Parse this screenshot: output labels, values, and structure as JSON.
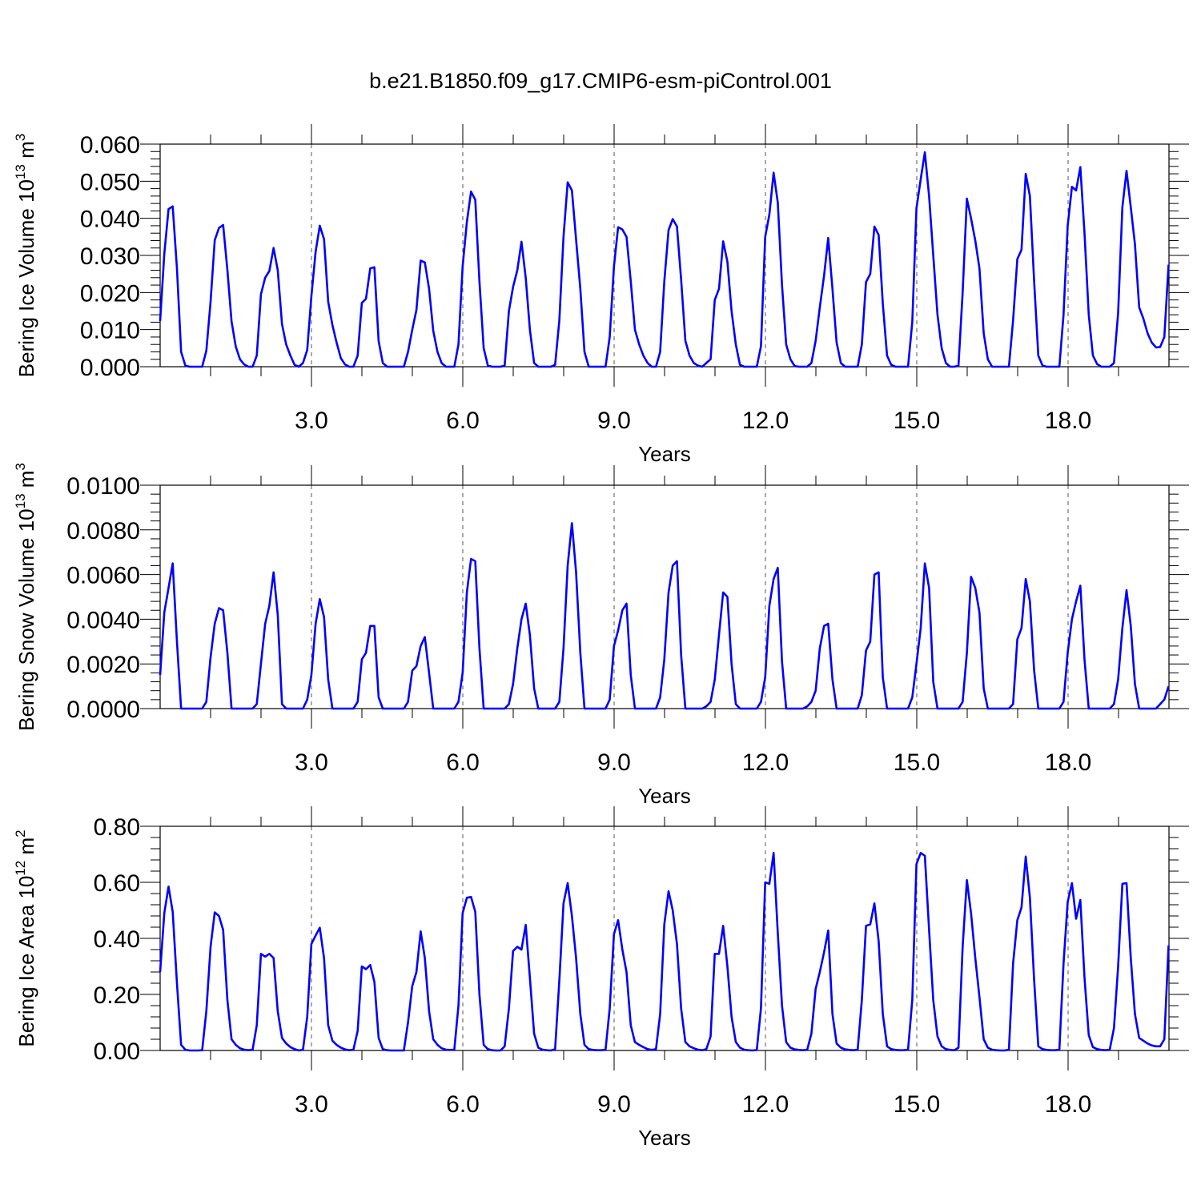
{
  "title": "b.e21.B1850.f09_g17.CMIP6-esm-piControl.001",
  "line_color": "#0000ff",
  "chart_data": [
    {
      "type": "line",
      "ylabel": "Bering Ice Volume 10",
      "ylabel_exp": "13",
      "ylabel_unit": "m",
      "ylabel_unit_exp": "3",
      "xlabel": "Years",
      "xlim": [
        0,
        20
      ],
      "xticks": [
        3,
        6,
        9,
        12,
        15,
        18
      ],
      "xtick_labels": [
        "3.0",
        "6.0",
        "9.0",
        "12.0",
        "15.0",
        "18.0"
      ],
      "ylim": [
        0,
        0.06
      ],
      "yticks": [
        0,
        0.01,
        0.02,
        0.03,
        0.04,
        0.05,
        0.06
      ],
      "ytick_labels": [
        "0.000",
        "0.010",
        "0.020",
        "0.030",
        "0.040",
        "0.050",
        "0.060"
      ],
      "grid": "dashed vertical at x ticks",
      "series": [
        {
          "x_start": 0.0,
          "x_step": 0.0833,
          "values": [
            0.0123,
            0.0304,
            0.0425,
            0.0432,
            0.0265,
            0.004,
            0.0003,
            0.0,
            0.0,
            0.0,
            0.0,
            0.0043,
            0.0175,
            0.0341,
            0.0374,
            0.0382,
            0.0261,
            0.0122,
            0.0054,
            0.002,
            0.0006,
            0.0,
            0.0,
            0.003,
            0.0195,
            0.024,
            0.0258,
            0.032,
            0.026,
            0.0115,
            0.006,
            0.003,
            0.0005,
            0.0,
            0.001,
            0.0045,
            0.019,
            0.031,
            0.038,
            0.0344,
            0.0175,
            0.0112,
            0.0065,
            0.0023,
            0.0006,
            0.0,
            0.0,
            0.003,
            0.0172,
            0.0183,
            0.0265,
            0.0268,
            0.0069,
            0.001,
            0.0,
            0.0,
            0.0,
            0.0,
            0.0,
            0.004,
            0.01,
            0.0153,
            0.0286,
            0.0281,
            0.021,
            0.0097,
            0.004,
            0.001,
            0.0,
            0.0,
            0.0,
            0.006,
            0.027,
            0.039,
            0.0472,
            0.045,
            0.023,
            0.005,
            0.0003,
            0.0,
            0.0,
            0.0,
            0.0003,
            0.015,
            0.0215,
            0.026,
            0.0337,
            0.024,
            0.01,
            0.001,
            0.0,
            0.0,
            0.0,
            0.0,
            0.0005,
            0.0125,
            0.035,
            0.0497,
            0.0475,
            0.0343,
            0.021,
            0.004,
            0.0,
            0.0,
            0.0,
            0.0,
            0.0,
            0.008,
            0.027,
            0.0376,
            0.037,
            0.035,
            0.023,
            0.01,
            0.006,
            0.003,
            0.001,
            0.0,
            0.0,
            0.004,
            0.023,
            0.0368,
            0.0398,
            0.0378,
            0.0235,
            0.007,
            0.003,
            0.001,
            0.0003,
            0.0,
            0.001,
            0.002,
            0.018,
            0.021,
            0.0338,
            0.0283,
            0.015,
            0.006,
            0.0005,
            0.0,
            0.0,
            0.0,
            0.0,
            0.0055,
            0.035,
            0.041,
            0.0523,
            0.0443,
            0.022,
            0.006,
            0.002,
            0.0002,
            0.0,
            0.0,
            0.0,
            0.001,
            0.007,
            0.016,
            0.0245,
            0.0347,
            0.021,
            0.0065,
            0.001,
            0.0,
            0.0,
            0.0,
            0.0,
            0.006,
            0.0228,
            0.025,
            0.0378,
            0.0355,
            0.017,
            0.003,
            0.0005,
            0.0,
            0.0,
            0.0,
            0.0,
            0.012,
            0.0427,
            0.0505,
            0.0578,
            0.046,
            0.03,
            0.014,
            0.005,
            0.001,
            0.0,
            0.0,
            0.0003,
            0.02,
            0.0453,
            0.04,
            0.034,
            0.0265,
            0.009,
            0.002,
            0.0,
            0.0,
            0.0,
            0.0,
            0.0,
            0.0125,
            0.029,
            0.0315,
            0.052,
            0.046,
            0.023,
            0.003,
            0.0003,
            0.0,
            0.0,
            0.0,
            0.0,
            0.014,
            0.038,
            0.0485,
            0.0475,
            0.0538,
            0.036,
            0.014,
            0.003,
            0.0007,
            0.0,
            0.0,
            0.0,
            0.001,
            0.0145,
            0.043,
            0.0528,
            0.043,
            0.033,
            0.016,
            0.013,
            0.009,
            0.0065,
            0.0052,
            0.0053,
            0.008,
            0.0275
          ]
        }
      ]
    },
    {
      "type": "line",
      "ylabel": "Bering Snow Volume 10",
      "ylabel_exp": "13",
      "ylabel_unit": "m",
      "ylabel_unit_exp": "3",
      "xlabel": "Years",
      "xlim": [
        0,
        20
      ],
      "xticks": [
        3,
        6,
        9,
        12,
        15,
        18
      ],
      "xtick_labels": [
        "3.0",
        "6.0",
        "9.0",
        "12.0",
        "15.0",
        "18.0"
      ],
      "ylim": [
        0,
        0.01
      ],
      "yticks": [
        0,
        0.002,
        0.004,
        0.006,
        0.008,
        0.01
      ],
      "ytick_labels": [
        "0.0000",
        "0.0020",
        "0.0040",
        "0.0060",
        "0.0080",
        "0.0100"
      ],
      "grid": "dashed vertical at x ticks",
      "series": [
        {
          "x_start": 0.0,
          "x_step": 0.0833,
          "values": [
            0.0015,
            0.0043,
            0.0054,
            0.0065,
            0.003,
            0.0,
            0.0,
            0.0,
            0.0,
            0.0,
            0.0,
            0.0003,
            0.0023,
            0.0038,
            0.0045,
            0.0044,
            0.0025,
            0.0,
            0.0,
            0.0,
            0.0,
            0.0,
            0.0,
            0.0002,
            0.002,
            0.0038,
            0.0046,
            0.0061,
            0.0042,
            0.0002,
            0.0,
            0.0,
            0.0,
            0.0,
            0.0,
            0.0004,
            0.0015,
            0.0038,
            0.0049,
            0.0041,
            0.0013,
            0.0,
            0.0,
            0.0,
            0.0,
            0.0,
            0.0,
            0.0003,
            0.0022,
            0.0025,
            0.0037,
            0.0037,
            0.0005,
            0.0,
            0.0,
            0.0,
            0.0,
            0.0,
            0.0,
            0.0003,
            0.0017,
            0.0019,
            0.0028,
            0.0032,
            0.0016,
            0.0,
            0.0,
            0.0,
            0.0,
            0.0,
            0.0,
            0.0003,
            0.0016,
            0.0052,
            0.0067,
            0.0066,
            0.0027,
            0.0,
            0.0,
            0.0,
            0.0,
            0.0,
            0.0,
            0.0002,
            0.0011,
            0.0027,
            0.004,
            0.0047,
            0.0033,
            0.0009,
            0.0,
            0.0,
            0.0,
            0.0,
            0.0,
            0.0003,
            0.0027,
            0.0064,
            0.0083,
            0.0061,
            0.0025,
            0.0,
            0.0,
            0.0,
            0.0,
            0.0,
            0.0,
            0.0004,
            0.0028,
            0.0035,
            0.0044,
            0.0047,
            0.0015,
            0.0,
            0.0,
            0.0,
            0.0,
            0.0,
            0.0,
            0.0005,
            0.0022,
            0.0052,
            0.0064,
            0.0066,
            0.0024,
            0.0,
            0.0,
            0.0,
            0.0,
            0.0,
            0.0001,
            0.0003,
            0.0013,
            0.0033,
            0.0052,
            0.005,
            0.002,
            0.0002,
            0.0,
            0.0,
            0.0,
            0.0,
            0.0,
            0.0003,
            0.0014,
            0.0046,
            0.0058,
            0.0063,
            0.0021,
            0.0,
            0.0,
            0.0,
            0.0,
            0.0,
            0.0001,
            0.0003,
            0.0008,
            0.0027,
            0.0037,
            0.0038,
            0.0013,
            0.0,
            0.0,
            0.0,
            0.0,
            0.0,
            0.0,
            0.0006,
            0.0026,
            0.003,
            0.006,
            0.0061,
            0.0014,
            0.0,
            0.0,
            0.0,
            0.0,
            0.0,
            0.0,
            0.0005,
            0.002,
            0.0036,
            0.0065,
            0.0054,
            0.0012,
            0.0,
            0.0,
            0.0,
            0.0,
            0.0,
            0.0,
            0.0003,
            0.0025,
            0.0059,
            0.0054,
            0.0043,
            0.0009,
            0.0,
            0.0,
            0.0,
            0.0,
            0.0,
            0.0,
            0.0002,
            0.0031,
            0.0036,
            0.0058,
            0.0048,
            0.0017,
            0.0,
            0.0,
            0.0,
            0.0,
            0.0,
            0.0,
            0.0003,
            0.0025,
            0.004,
            0.0048,
            0.0055,
            0.0022,
            0.0,
            0.0,
            0.0,
            0.0,
            0.0,
            0.0,
            0.0002,
            0.0013,
            0.0036,
            0.0053,
            0.0037,
            0.0011,
            0.0,
            0.0,
            0.0,
            0.0,
            0.0,
            0.0002,
            0.0004,
            0.001
          ]
        }
      ]
    },
    {
      "type": "line",
      "ylabel": "Bering Ice Area 10",
      "ylabel_exp": "12",
      "ylabel_unit": "m",
      "ylabel_unit_exp": "2",
      "xlabel": "Years",
      "xlim": [
        0,
        20
      ],
      "xticks": [
        3,
        6,
        9,
        12,
        15,
        18
      ],
      "xtick_labels": [
        "3.0",
        "6.0",
        "9.0",
        "12.0",
        "15.0",
        "18.0"
      ],
      "ylim": [
        0,
        0.8
      ],
      "yticks": [
        0,
        0.2,
        0.4,
        0.6,
        0.8
      ],
      "ytick_labels": [
        "0.00",
        "0.20",
        "0.40",
        "0.60",
        "0.80"
      ],
      "grid": "dashed vertical at x ticks",
      "series": [
        {
          "x_start": 0.0,
          "x_step": 0.0833,
          "values": [
            0.28,
            0.49,
            0.585,
            0.495,
            0.24,
            0.02,
            0.003,
            0.0,
            0.0,
            0.0,
            0.001,
            0.14,
            0.37,
            0.493,
            0.48,
            0.43,
            0.18,
            0.04,
            0.02,
            0.008,
            0.003,
            0.001,
            0.003,
            0.09,
            0.345,
            0.335,
            0.345,
            0.33,
            0.14,
            0.045,
            0.025,
            0.012,
            0.005,
            0.0,
            0.003,
            0.12,
            0.38,
            0.41,
            0.438,
            0.33,
            0.09,
            0.035,
            0.02,
            0.01,
            0.004,
            0.001,
            0.003,
            0.07,
            0.3,
            0.29,
            0.305,
            0.245,
            0.045,
            0.005,
            0.001,
            0.0,
            0.0,
            0.0,
            0.0,
            0.1,
            0.23,
            0.28,
            0.425,
            0.33,
            0.14,
            0.04,
            0.02,
            0.008,
            0.003,
            0.002,
            0.003,
            0.16,
            0.49,
            0.545,
            0.548,
            0.495,
            0.2,
            0.02,
            0.005,
            0.001,
            0.0,
            0.0,
            0.015,
            0.15,
            0.355,
            0.37,
            0.36,
            0.448,
            0.26,
            0.06,
            0.01,
            0.003,
            0.001,
            0.0,
            0.005,
            0.25,
            0.525,
            0.597,
            0.48,
            0.33,
            0.13,
            0.02,
            0.005,
            0.002,
            0.001,
            0.001,
            0.003,
            0.15,
            0.415,
            0.465,
            0.36,
            0.28,
            0.09,
            0.03,
            0.02,
            0.012,
            0.005,
            0.002,
            0.005,
            0.13,
            0.45,
            0.568,
            0.5,
            0.38,
            0.15,
            0.03,
            0.015,
            0.008,
            0.003,
            0.001,
            0.005,
            0.05,
            0.345,
            0.345,
            0.445,
            0.3,
            0.12,
            0.03,
            0.01,
            0.003,
            0.001,
            0.0,
            0.002,
            0.15,
            0.6,
            0.595,
            0.705,
            0.42,
            0.16,
            0.03,
            0.01,
            0.004,
            0.002,
            0.001,
            0.003,
            0.06,
            0.22,
            0.28,
            0.35,
            0.428,
            0.13,
            0.025,
            0.01,
            0.004,
            0.002,
            0.001,
            0.003,
            0.18,
            0.445,
            0.45,
            0.525,
            0.39,
            0.13,
            0.015,
            0.005,
            0.002,
            0.001,
            0.001,
            0.003,
            0.18,
            0.665,
            0.705,
            0.695,
            0.43,
            0.18,
            0.05,
            0.015,
            0.005,
            0.002,
            0.001,
            0.01,
            0.37,
            0.608,
            0.49,
            0.33,
            0.19,
            0.04,
            0.01,
            0.003,
            0.001,
            0.0,
            0.0,
            0.003,
            0.31,
            0.465,
            0.51,
            0.692,
            0.545,
            0.25,
            0.015,
            0.005,
            0.002,
            0.001,
            0.001,
            0.003,
            0.31,
            0.53,
            0.597,
            0.47,
            0.537,
            0.26,
            0.055,
            0.012,
            0.005,
            0.002,
            0.001,
            0.003,
            0.08,
            0.3,
            0.595,
            0.597,
            0.33,
            0.13,
            0.045,
            0.035,
            0.025,
            0.018,
            0.015,
            0.015,
            0.04,
            0.375
          ]
        }
      ]
    }
  ]
}
